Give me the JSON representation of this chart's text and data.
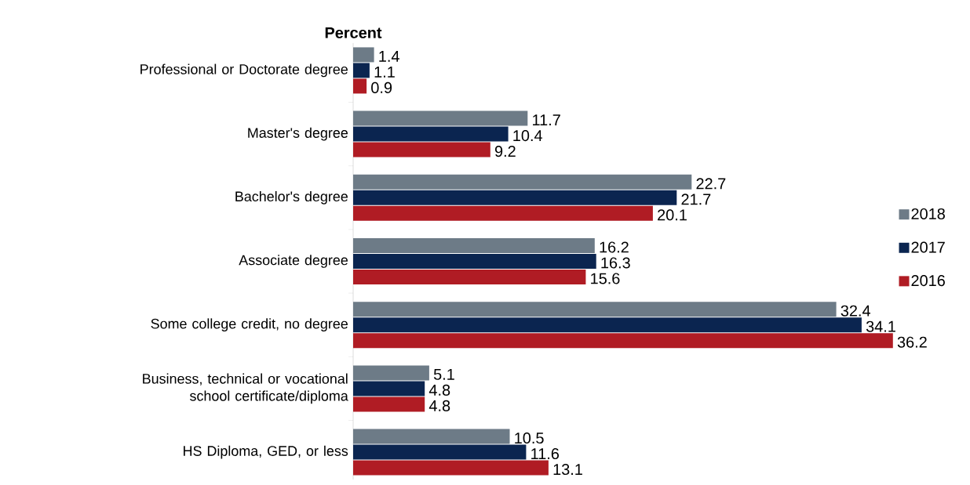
{
  "chart_data": {
    "type": "bar",
    "orientation": "horizontal",
    "title": "Percent",
    "categories": [
      "Professional or Doctorate degree",
      "Master's degree",
      "Bachelor's degree",
      "Associate degree",
      "Some college credit, no degree",
      "Business, technical or vocational school certificate/diploma",
      "HS Diploma, GED, or less"
    ],
    "series": [
      {
        "name": "2018",
        "color": "#6d7b87",
        "values": [
          1.4,
          11.7,
          22.7,
          16.2,
          32.4,
          5.1,
          10.5
        ]
      },
      {
        "name": "2017",
        "color": "#0b2550",
        "values": [
          1.1,
          10.4,
          21.7,
          16.3,
          34.1,
          4.8,
          11.6
        ]
      },
      {
        "name": "2016",
        "color": "#b01c24",
        "values": [
          0.9,
          9.2,
          20.1,
          15.6,
          36.2,
          4.8,
          13.1
        ]
      }
    ],
    "data_labels": true,
    "legend": "right"
  }
}
